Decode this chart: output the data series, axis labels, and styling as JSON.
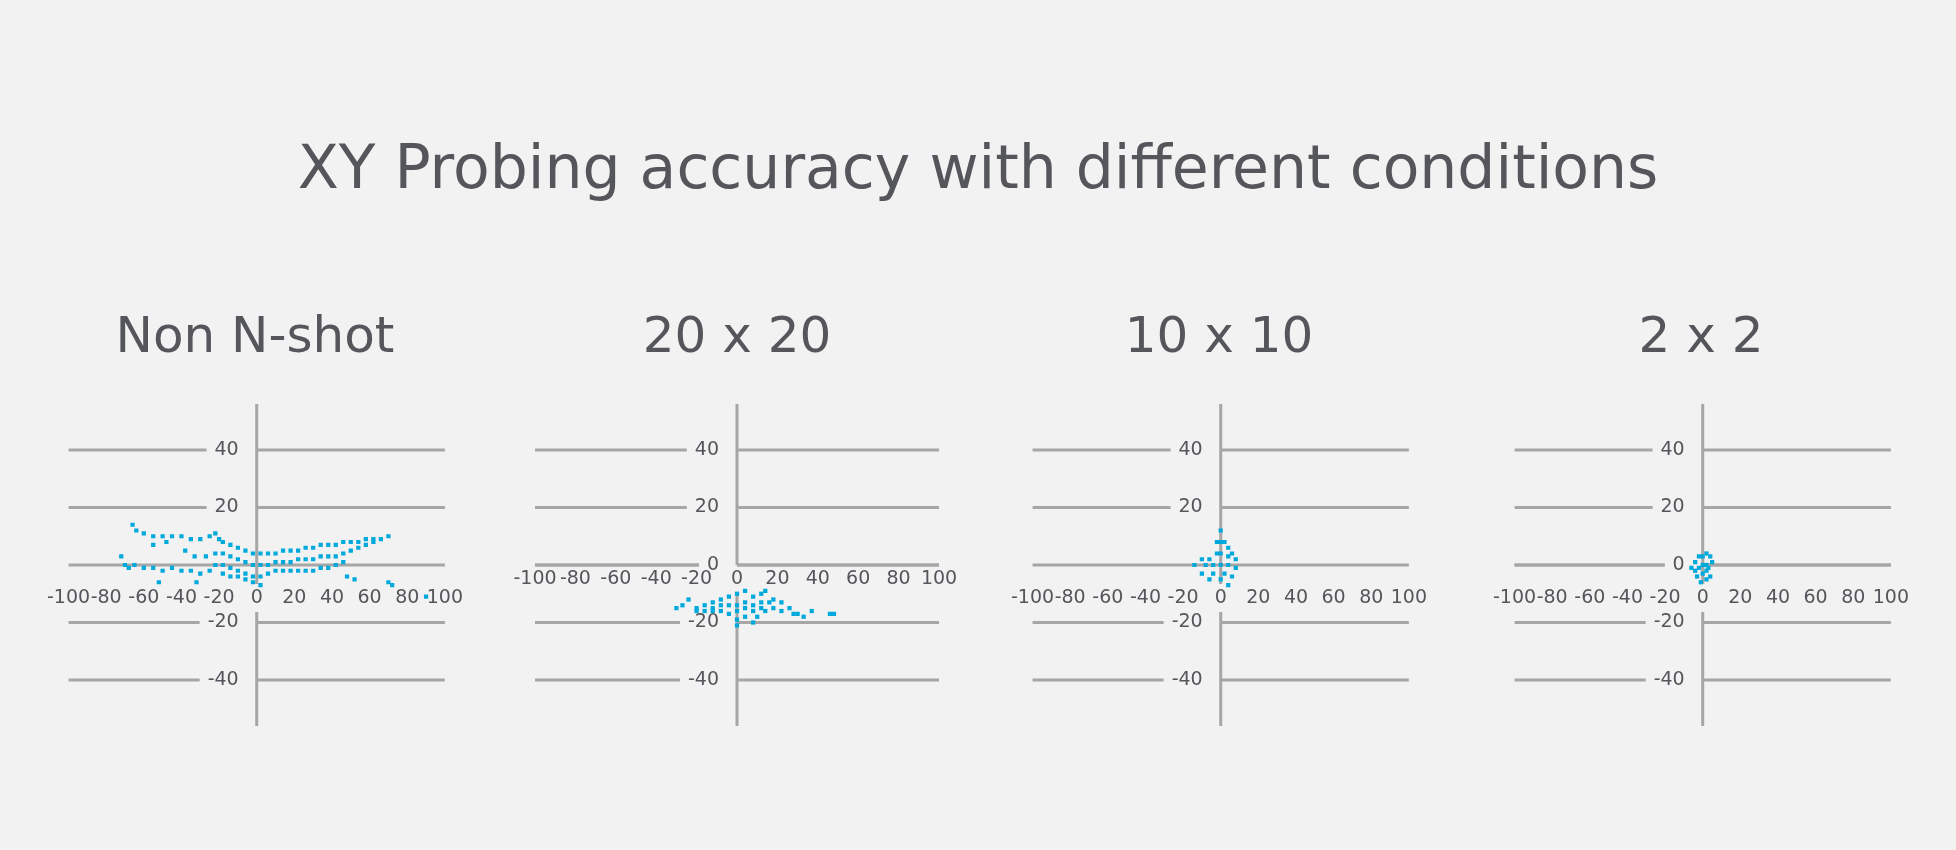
{
  "chart_data": [
    {
      "type": "other",
      "title": "XY Probing accuracy with different conditions"
    },
    {
      "type": "scatter",
      "title": "Non N-shot",
      "xlim": [
        -100,
        100
      ],
      "ylim": [
        -56,
        56
      ],
      "xticks": [
        -100,
        -80,
        -60,
        -40,
        -20,
        0,
        20,
        40,
        60,
        80,
        100
      ],
      "yticks": [
        -40,
        -20,
        20,
        40
      ],
      "grid": "y",
      "marker": "square",
      "legend": false,
      "series": [
        {
          "color": "#00a9dc",
          "x": [
            -66,
            -64,
            -60,
            -55,
            -50,
            -45,
            -40,
            -35,
            -30,
            -25,
            -22,
            -20,
            -72,
            -70,
            -68,
            -65,
            -60,
            -55,
            -50,
            -45,
            -40,
            -35,
            -30,
            -25,
            -55,
            -48,
            -38,
            -33,
            -27,
            -22,
            -22,
            -18,
            -18,
            -18,
            -18,
            -14,
            -14,
            -14,
            -14,
            -10,
            -10,
            -10,
            -10,
            -6,
            -6,
            -6,
            -6,
            -2,
            -2,
            -2,
            -2,
            2,
            2,
            2,
            2,
            6,
            6,
            6,
            10,
            10,
            10,
            14,
            14,
            14,
            18,
            18,
            18,
            22,
            22,
            22,
            26,
            26,
            26,
            30,
            30,
            30,
            34,
            34,
            34,
            38,
            38,
            38,
            42,
            42,
            42,
            46,
            46,
            46,
            50,
            50,
            54,
            54,
            58,
            58,
            62,
            62,
            66,
            70,
            48,
            52,
            70,
            72,
            90,
            -52,
            -32
          ],
          "values": [
            14,
            12,
            11,
            10,
            10,
            10,
            10,
            9,
            9,
            10,
            11,
            9,
            3,
            0,
            -1,
            0,
            -1,
            -1,
            -2,
            -1,
            -2,
            -2,
            -3,
            -2,
            7,
            8,
            5,
            3,
            3,
            4,
            0,
            8,
            4,
            0,
            -3,
            7,
            3,
            -1,
            -4,
            6,
            2,
            -2,
            -4,
            5,
            1,
            -3,
            -5,
            4,
            0,
            -4,
            -6,
            4,
            0,
            -4,
            -7,
            4,
            0,
            -3,
            4,
            1,
            -2,
            5,
            1,
            -2,
            5,
            1,
            -2,
            5,
            2,
            -2,
            6,
            2,
            -2,
            6,
            2,
            -2,
            7,
            3,
            -1,
            7,
            3,
            -1,
            7,
            3,
            0,
            8,
            4,
            1,
            8,
            5,
            8,
            6,
            9,
            7,
            9,
            8,
            9,
            10,
            -4,
            -5,
            -6,
            -7,
            -11,
            -6,
            -6
          ]
        }
      ]
    },
    {
      "type": "scatter",
      "title": "20 x 20",
      "xlim": [
        -100,
        100
      ],
      "ylim": [
        -56,
        56
      ],
      "xticks": [
        -100,
        -80,
        -60,
        -40,
        -20,
        0,
        20,
        40,
        60,
        80,
        100
      ],
      "yticks": [
        -40,
        -20,
        0,
        20,
        40
      ],
      "grid": "y",
      "marker": "square",
      "legend": false,
      "series": [
        {
          "color": "#00a9dc",
          "x": [
            -30,
            -27,
            -24,
            -20,
            -16,
            -12,
            -8,
            -4,
            0,
            4,
            8,
            12,
            14,
            18,
            22,
            26,
            30,
            33,
            -20,
            -16,
            -12,
            -8,
            -4,
            0,
            0,
            4,
            8,
            10,
            14,
            18,
            22,
            28,
            -8,
            -4,
            0,
            0,
            4,
            4,
            8,
            8,
            12,
            12,
            16,
            -12,
            37,
            46,
            48
          ],
          "values": [
            -15,
            -14,
            -12,
            -15,
            -14,
            -13,
            -12,
            -11,
            -10,
            -9,
            -11,
            -10,
            -9,
            -12,
            -13,
            -15,
            -17,
            -18,
            -16,
            -16,
            -16,
            -16,
            -17,
            -19,
            -21,
            -18,
            -20,
            -18,
            -16,
            -15,
            -16,
            -17,
            -14,
            -14,
            -14,
            -16,
            -13,
            -15,
            -14,
            -16,
            -13,
            -15,
            -13,
            -15,
            -16,
            -17,
            -17
          ]
        }
      ]
    },
    {
      "type": "scatter",
      "title": "10 x 10",
      "xlim": [
        -100,
        100
      ],
      "ylim": [
        -56,
        56
      ],
      "xticks": [
        -100,
        -80,
        -60,
        -40,
        -20,
        0,
        20,
        40,
        60,
        80,
        100
      ],
      "yticks": [
        -40,
        -20,
        20,
        40
      ],
      "grid": "y",
      "marker": "square",
      "legend": false,
      "series": [
        {
          "color": "#00a9dc",
          "x": [
            0,
            2,
            4,
            6,
            8,
            8,
            6,
            4,
            0,
            -6,
            -10,
            -14,
            -10,
            -6,
            -2,
            -2,
            0,
            0,
            0,
            -4,
            -8,
            4,
            4,
            2,
            -4
          ],
          "values": [
            12,
            8,
            6,
            4,
            2,
            -1,
            -4,
            -7,
            -5,
            -5,
            -3,
            0,
            2,
            2,
            4,
            8,
            8,
            4,
            0,
            0,
            0,
            0,
            3,
            -3,
            -3
          ]
        }
      ]
    },
    {
      "type": "scatter",
      "title": "2 x 2",
      "xlim": [
        -100,
        100
      ],
      "ylim": [
        -56,
        56
      ],
      "xticks": [
        -100,
        -80,
        -60,
        -40,
        -20,
        0,
        20,
        40,
        60,
        80,
        100
      ],
      "yticks": [
        -40,
        -20,
        0,
        20,
        40
      ],
      "grid": "y",
      "marker": "square",
      "legend": false,
      "series": [
        {
          "color": "#00a9dc",
          "x": [
            -6,
            -4,
            -2,
            0,
            2,
            4,
            5,
            3,
            4,
            2,
            -1,
            -3,
            -4,
            0,
            0,
            2,
            -2,
            2
          ],
          "values": [
            -1,
            1,
            3,
            3,
            4,
            3,
            1,
            -1,
            -4,
            -5,
            -6,
            -4,
            -2,
            0,
            -3,
            0,
            -1,
            -2
          ]
        }
      ]
    }
  ]
}
